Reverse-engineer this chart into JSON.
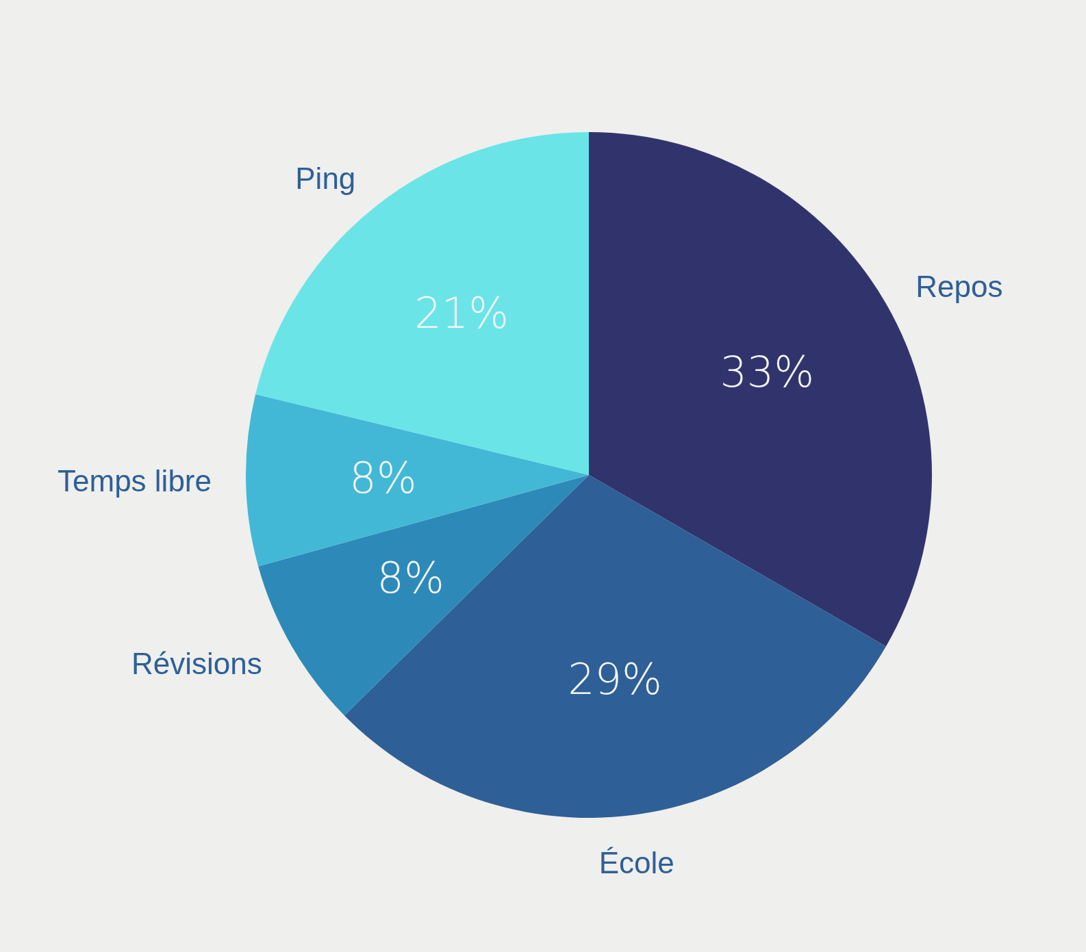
{
  "chart_data": {
    "type": "pie",
    "categories": [
      "Repos",
      "École",
      "Révisions",
      "Temps libre",
      "Ping"
    ],
    "values": [
      33,
      29,
      8,
      8,
      21
    ],
    "colors": [
      "#31346c",
      "#2f5f97",
      "#2d8ab8",
      "#42b8d6",
      "#6ae4e7"
    ],
    "value_labels": [
      "33%",
      "29%",
      "8%",
      "8%",
      "21%"
    ]
  }
}
